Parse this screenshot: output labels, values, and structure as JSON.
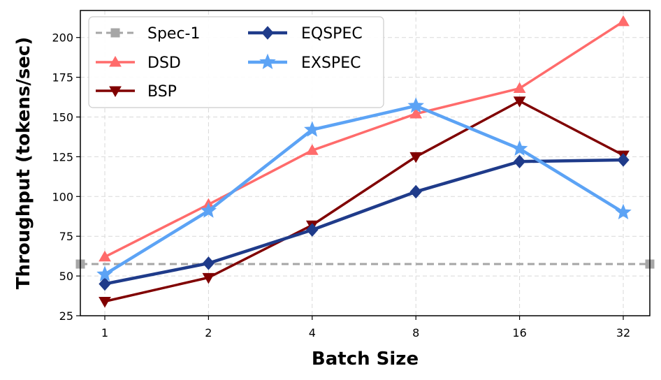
{
  "chart_data": {
    "type": "line",
    "xlabel": "Batch Size",
    "ylabel": "Throughput (tokens/sec)",
    "categories": [
      "1",
      "2",
      "4",
      "8",
      "16",
      "32"
    ],
    "ylim": [
      25,
      217
    ],
    "yticks": [
      25,
      50,
      75,
      100,
      125,
      150,
      175,
      200
    ],
    "grid": true,
    "legend_position": "top-left",
    "legend_columns": 2,
    "series": [
      {
        "name": "Spec-1",
        "values": [
          57.5,
          57.5,
          57.5,
          57.5,
          57.5,
          57.5
        ],
        "color": "#a6a6a6",
        "marker": "square",
        "line": "dashed",
        "extends_to_edges": true
      },
      {
        "name": "DSD",
        "values": [
          62,
          95,
          129,
          152,
          168,
          210
        ],
        "color": "#ff6b6b",
        "marker": "triangle-up",
        "line": "solid"
      },
      {
        "name": "BSP",
        "values": [
          34,
          49,
          82,
          125,
          160,
          126
        ],
        "color": "#800000",
        "marker": "triangle-down",
        "line": "solid"
      },
      {
        "name": "EQSPEC",
        "values": [
          45,
          58,
          79,
          103,
          122,
          123
        ],
        "color": "#1f3b8a",
        "marker": "diamond",
        "line": "solid"
      },
      {
        "name": "EXSPEC",
        "values": [
          51,
          91,
          142,
          157,
          130,
          90
        ],
        "color": "#5ca3f5",
        "marker": "star",
        "line": "solid"
      }
    ]
  }
}
